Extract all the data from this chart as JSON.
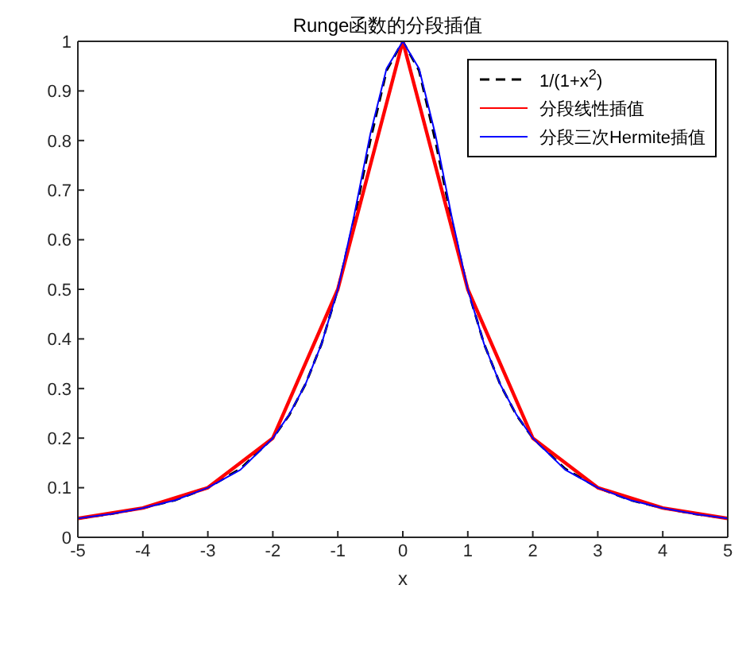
{
  "chart_data": {
    "type": "line",
    "title": "Runge函数的分段插值",
    "xlabel": "x",
    "xlim": [
      -5,
      5
    ],
    "xticks": [
      -5,
      -4,
      -3,
      -2,
      -1,
      0,
      1,
      2,
      3,
      4,
      5
    ],
    "ylim": [
      0,
      1
    ],
    "yticks": [
      0,
      0.1,
      0.2,
      0.3,
      0.4,
      0.5,
      0.6,
      0.7,
      0.8,
      0.9,
      1
    ],
    "grid": false,
    "legend": "top right",
    "marker": "none",
    "series": [
      {
        "name": "1/(1+x$^{2}$)",
        "color": "#000000",
        "line_style": "dashed",
        "x": [
          -5,
          -4.5,
          -4,
          -3.5,
          -3,
          -2.5,
          -2,
          -1.75,
          -1.5,
          -1.25,
          -1,
          -0.75,
          -0.5,
          -0.25,
          0,
          0.25,
          0.5,
          0.75,
          1,
          1.25,
          1.5,
          1.75,
          2,
          2.5,
          3,
          3.5,
          4,
          4.5,
          5
        ],
        "values": [
          0.038,
          0.047,
          0.059,
          0.075,
          0.1,
          0.138,
          0.2,
          0.246,
          0.308,
          0.39,
          0.5,
          0.64,
          0.8,
          0.941,
          1,
          0.941,
          0.8,
          0.64,
          0.5,
          0.39,
          0.308,
          0.246,
          0.2,
          0.138,
          0.1,
          0.075,
          0.059,
          0.047,
          0.038
        ]
      },
      {
        "name": "分段线性插值",
        "color": "#ff0000",
        "line_style": "solid",
        "x": [
          -5,
          -4,
          -3,
          -2,
          -1,
          0,
          1,
          2,
          3,
          4,
          5
        ],
        "values": [
          0.038,
          0.059,
          0.1,
          0.2,
          0.5,
          1,
          0.5,
          0.2,
          0.1,
          0.059,
          0.038
        ]
      },
      {
        "name": "分段三次Hermite插值",
        "color": "#0000ff",
        "line_style": "solid",
        "x": [
          -5,
          -4.5,
          -4,
          -3.5,
          -3,
          -2.5,
          -2,
          -1.75,
          -1.5,
          -1.25,
          -1,
          -0.75,
          -0.5,
          -0.25,
          0,
          0.25,
          0.5,
          0.75,
          1,
          1.25,
          1.5,
          1.75,
          2,
          2.5,
          3,
          3.5,
          4,
          4.5,
          5
        ],
        "values": [
          0.038,
          0.047,
          0.059,
          0.075,
          0.1,
          0.136,
          0.2,
          0.247,
          0.308,
          0.39,
          0.5,
          0.648,
          0.813,
          0.945,
          1,
          0.945,
          0.813,
          0.648,
          0.5,
          0.39,
          0.308,
          0.247,
          0.2,
          0.136,
          0.1,
          0.075,
          0.059,
          0.047,
          0.038
        ]
      }
    ]
  }
}
